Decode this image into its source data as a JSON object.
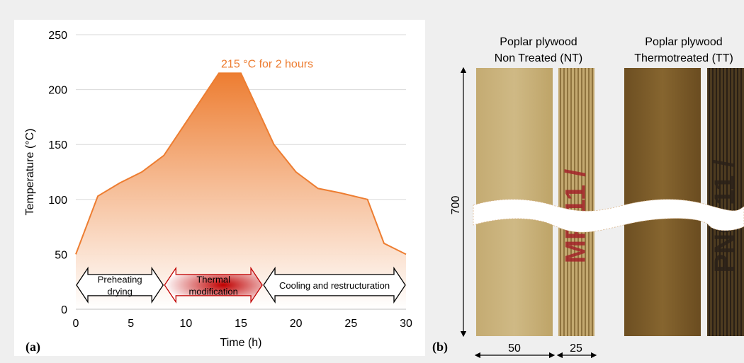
{
  "chart_data": {
    "type": "area",
    "panel_label": "(a)",
    "xlabel": "Time (h)",
    "ylabel": "Temperature (°C)",
    "xlim": [
      0,
      30
    ],
    "ylim": [
      0,
      250
    ],
    "xticks": [
      0,
      5,
      10,
      15,
      20,
      25,
      30
    ],
    "yticks": [
      0,
      50,
      100,
      150,
      200,
      250
    ],
    "grid": "horizontal",
    "x": [
      0,
      2,
      4,
      6,
      8,
      13,
      15,
      18,
      20,
      22,
      24,
      26.5,
      28,
      30
    ],
    "y": [
      50,
      103,
      115,
      125,
      140,
      215,
      215,
      150,
      125,
      110,
      106,
      100,
      60,
      50
    ],
    "colors": {
      "line": "#ed7d31",
      "fill_top": "#ed7d31",
      "fill_bottom": "#ffffff",
      "annotation": "#ed7d31",
      "thermal_arrow": "#c00000"
    },
    "annotation": {
      "text": "215 °C for 2 hours",
      "x": 13.2,
      "y": 215
    },
    "phases": [
      {
        "label_lines": [
          "Preheating",
          "drying"
        ],
        "x_start": 0,
        "x_end": 8,
        "y": 22,
        "style": "outline"
      },
      {
        "label_lines": [
          "Thermal",
          "modification"
        ],
        "x_start": 8,
        "x_end": 17,
        "y": 22,
        "style": "red-gradient"
      },
      {
        "label_lines": [
          "Cooling and restructuration"
        ],
        "x_start": 17,
        "x_end": 30,
        "y": 22,
        "style": "outline"
      }
    ]
  },
  "panel_b": {
    "label": "(b)",
    "samples": [
      {
        "title_lines": [
          "Poplar plywood",
          "Non Treated (NT)"
        ],
        "face_color": "#c9b27a",
        "edge_color": "#b59a60",
        "edge_text": "MF 11 /",
        "edge_text_color": "#a4242a"
      },
      {
        "title_lines": [
          "Poplar plywood",
          "Thermotreated (TT)"
        ],
        "face_color": "#7a5a2a",
        "edge_color": "#5a4120",
        "edge_text": "PNC 11 /",
        "edge_text_color": "#2a2018"
      }
    ],
    "height_label": "700",
    "width_label": "50",
    "thickness_label": "25"
  }
}
